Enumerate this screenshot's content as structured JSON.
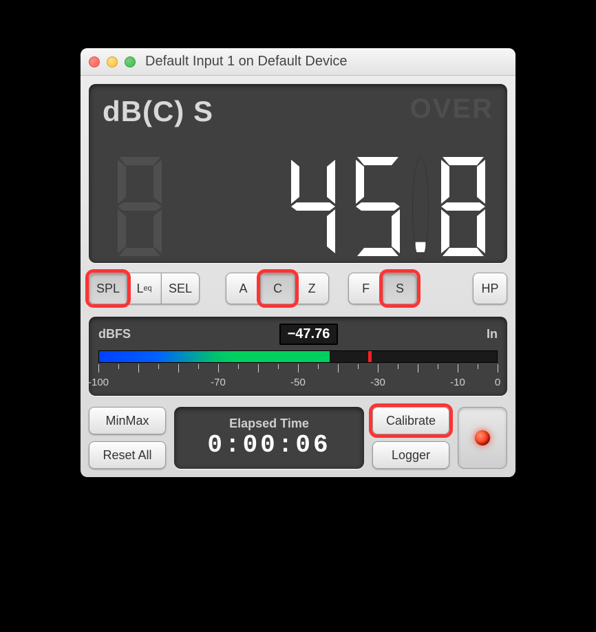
{
  "window": {
    "title": "Default Input 1 on Default Device"
  },
  "display": {
    "mode_label": "dB(C) S",
    "over_label": "OVER",
    "value": "45.8",
    "ghost_digits": 1
  },
  "buttons": {
    "mode": [
      "SPL",
      "L<sub>eq</sub>",
      "SEL"
    ],
    "mode_pressed": 0,
    "mode_highlight": [
      0
    ],
    "weight": [
      "A",
      "C",
      "Z"
    ],
    "weight_pressed": 1,
    "weight_highlight": [
      1
    ],
    "speed": [
      "F",
      "S"
    ],
    "speed_pressed": 1,
    "speed_highlight": [
      1
    ],
    "hp": "HP"
  },
  "meter": {
    "left_label": "dBFS",
    "right_label": "In",
    "value": "−47.76",
    "scale_min": -100,
    "scale_max": 0,
    "fill_to": -42,
    "peak_at": -32,
    "major_ticks": [
      -100,
      -90,
      -80,
      -70,
      -60,
      -50,
      -40,
      -30,
      -20,
      -10,
      0
    ],
    "labels": [
      -100,
      -70,
      -50,
      -30,
      -10,
      0
    ],
    "colors": {
      "fill_gradient": [
        "#0040ff",
        "#0060ff",
        "#00c070",
        "#00d060"
      ],
      "peak": "#ff2020",
      "track": "#1a1a1a"
    }
  },
  "bottom": {
    "minmax": "MinMax",
    "reset": "Reset All",
    "elapsed_label": "Elapsed Time",
    "elapsed_time": "0:00:06",
    "calibrate": "Calibrate",
    "logger": "Logger"
  },
  "highlight_color": "#ff3333"
}
